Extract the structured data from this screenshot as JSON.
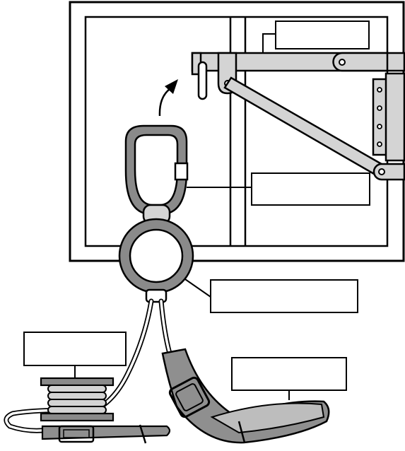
{
  "diagram": {
    "labels": {
      "top_right": "",
      "middle_right": "",
      "ring_label": "",
      "reel_label": "",
      "strap_label": ""
    },
    "colors": {
      "outline": "#000000",
      "metal": "#d4d4d4",
      "metal_dark": "#8a8a8a",
      "strap": "#8f8f8f",
      "strap_light": "#bdbdbd",
      "reel": "#cfcfcf",
      "label_fill": "#ffffff"
    },
    "icons": {
      "carabiner": "carabiner-icon",
      "ring": "ring-icon",
      "arrow": "curved-arrow-icon",
      "hinge": "hinge-plate-icon"
    }
  }
}
